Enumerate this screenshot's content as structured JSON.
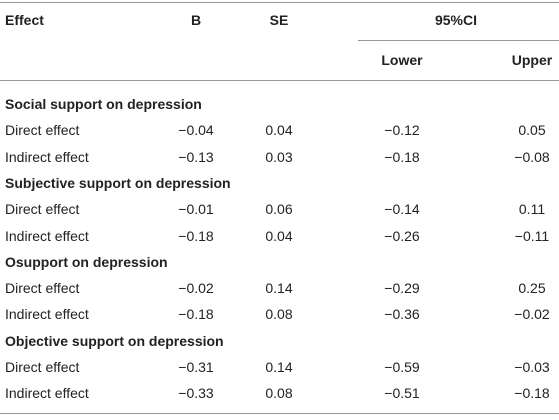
{
  "header": {
    "effect": "Effect",
    "b": "B",
    "se": "SE",
    "ci": "95%CI",
    "lower": "Lower",
    "upper": "Upper"
  },
  "sections": [
    {
      "title": "Social support on depression",
      "rows": [
        [
          "Direct effect",
          "−0.04",
          "0.04",
          "−0.12",
          "0.05"
        ],
        [
          "Indirect effect",
          "−0.13",
          "0.03",
          "−0.18",
          "−0.08"
        ]
      ]
    },
    {
      "title": "Subjective support on depression",
      "rows": [
        [
          "Direct effect",
          "−0.01",
          "0.06",
          "−0.14",
          "0.11"
        ],
        [
          "Indirect effect",
          "−0.18",
          "0.04",
          "−0.26",
          "−0.11"
        ]
      ]
    },
    {
      "title": "Osupport on depression",
      "rows": [
        [
          "Direct effect",
          "−0.02",
          "0.14",
          "−0.29",
          "0.25"
        ],
        [
          "Indirect effect",
          "−0.18",
          "0.08",
          "−0.36",
          "−0.02"
        ]
      ]
    },
    {
      "title": "Objective support on depression",
      "rows": [
        [
          "Direct effect",
          "−0.31",
          "0.14",
          "−0.59",
          "−0.03"
        ],
        [
          "Indirect effect",
          "−0.33",
          "0.08",
          "−0.51",
          "−0.18"
        ]
      ]
    }
  ]
}
